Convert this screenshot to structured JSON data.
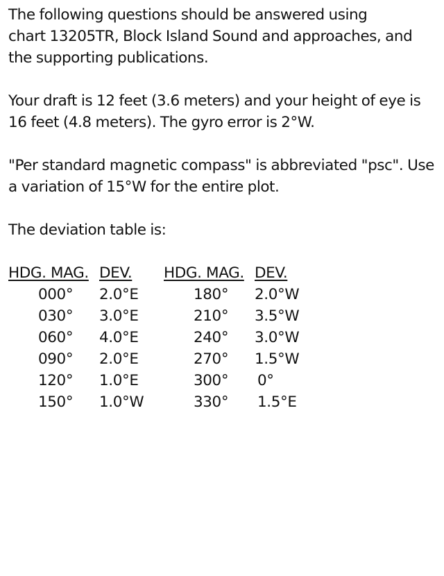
{
  "paragraphs": [
    [
      "The following questions should be answered using",
      "chart 13205TR, Block Island Sound and approaches, and",
      "the supporting publications."
    ],
    [
      "Your draft is 12 feet (3.6 meters) and your height of eye is",
      "16 feet (4.8 meters). The gyro error is 2°W."
    ],
    [
      "\"Per standard magnetic compass\" is abbreviated \"psc\". Use",
      "a variation of 15°W for the entire plot."
    ],
    [
      "The deviation table is:"
    ]
  ],
  "deviation_table": {
    "left": {
      "hdg_header": "HDG. MAG.",
      "dev_header": "DEV.",
      "rows": [
        {
          "hdg": "000°",
          "dev": "2.0°E"
        },
        {
          "hdg": "030°",
          "dev": "3.0°E"
        },
        {
          "hdg": "060°",
          "dev": "4.0°E"
        },
        {
          "hdg": "090°",
          "dev": "2.0°E"
        },
        {
          "hdg": "120°",
          "dev": "1.0°E"
        },
        {
          "hdg": "150°",
          "dev": "1.0°W"
        }
      ]
    },
    "right": {
      "hdg_header": "HDG. MAG.",
      "dev_header": "DEV.",
      "rows": [
        {
          "hdg": "180°",
          "dev": "2.0°W"
        },
        {
          "hdg": "210°",
          "dev": "3.5°W"
        },
        {
          "hdg": "240°",
          "dev": "3.0°W"
        },
        {
          "hdg": "270°",
          "dev": "1.5°W"
        },
        {
          "hdg": "300°",
          "dev": "0°"
        },
        {
          "hdg": "330°",
          "dev": "1.5°E"
        }
      ]
    }
  }
}
